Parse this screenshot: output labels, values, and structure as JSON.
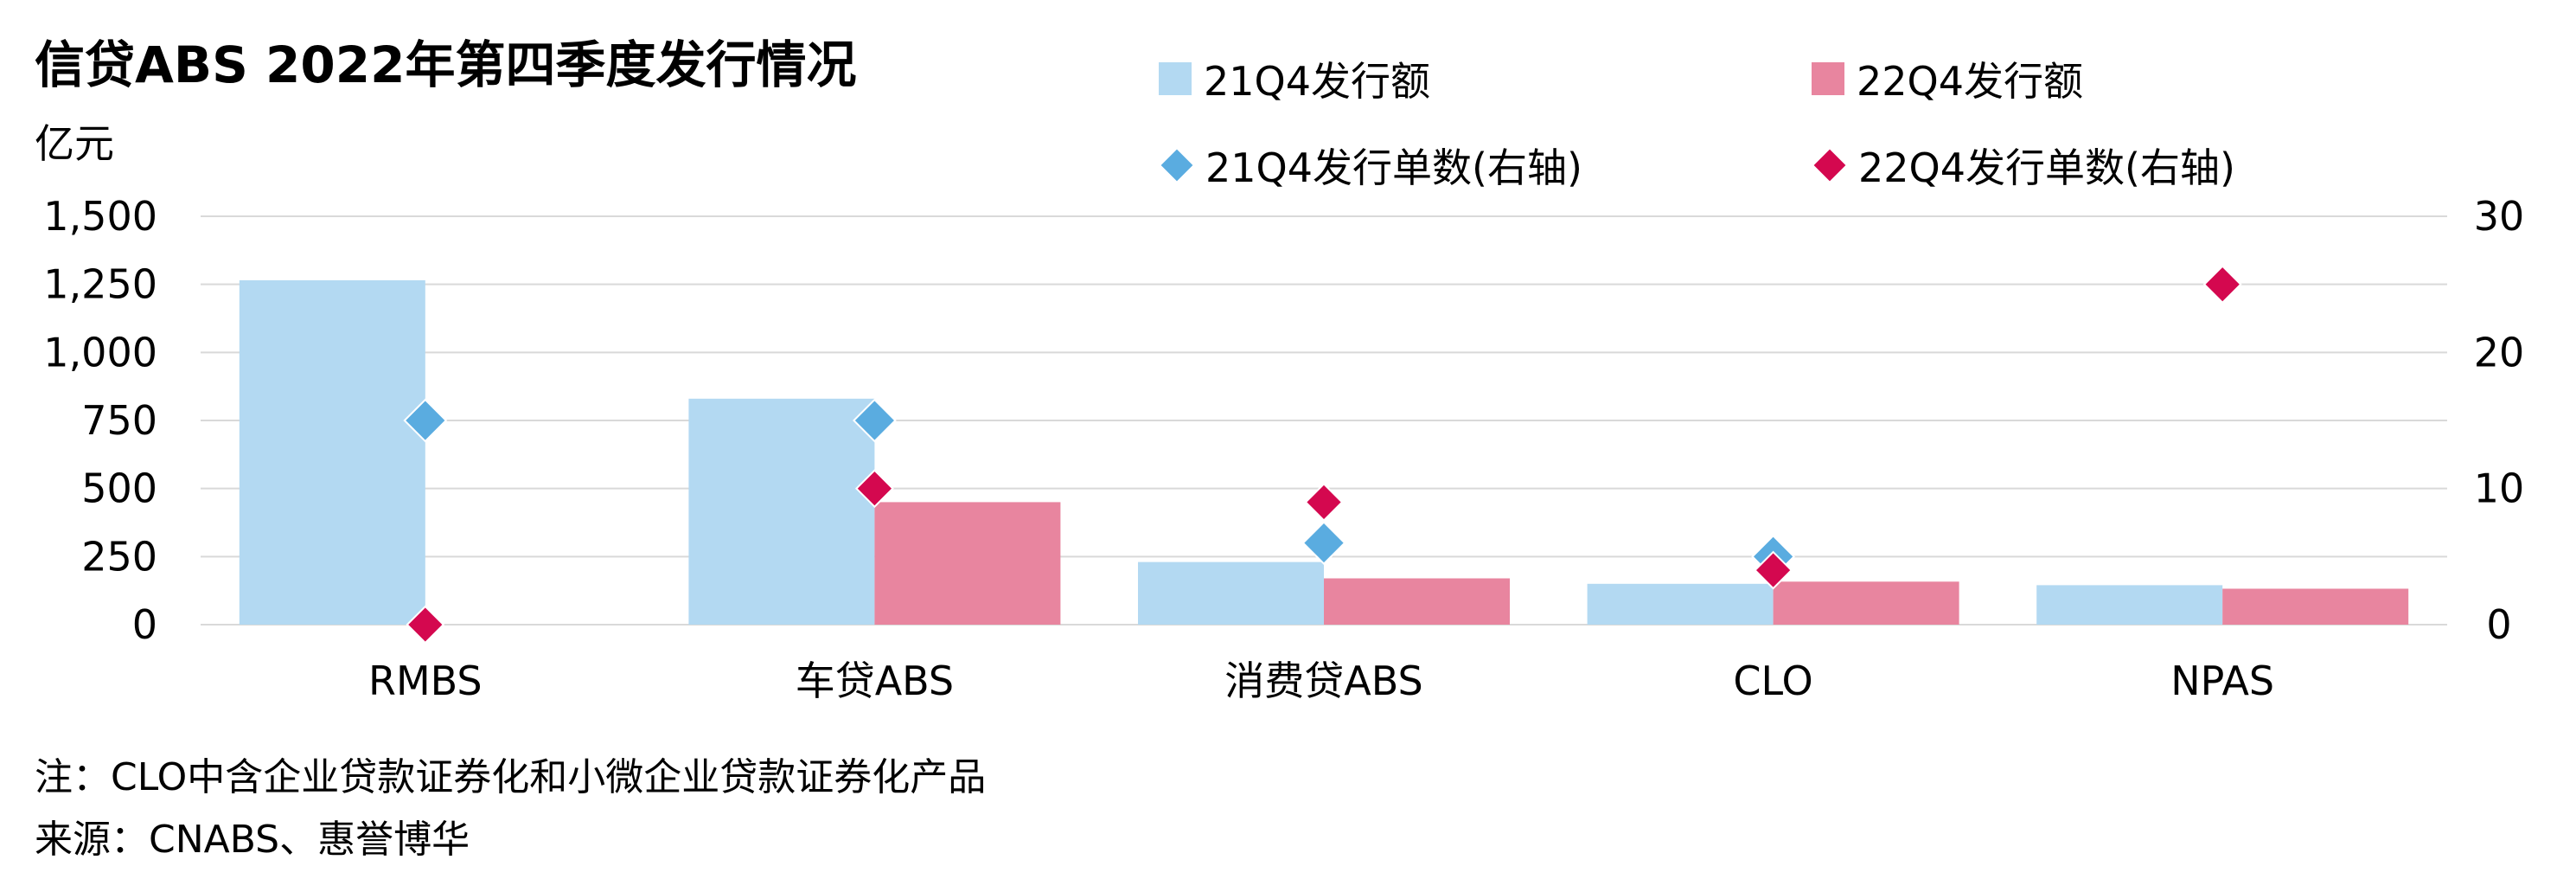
{
  "chart_data": {
    "type": "bar",
    "title": "信贷ABS 2022年第四季度发行情况",
    "ylabel": "亿元",
    "categories": [
      "RMBS",
      "车贷ABS",
      "消费贷ABS",
      "CLO",
      "NPAS"
    ],
    "ylim": [
      0,
      1500
    ],
    "yticks": [
      "0",
      "250",
      "500",
      "750",
      "1,000",
      "1,250",
      "1,500"
    ],
    "y2lim": [
      0,
      30
    ],
    "y2ticks": [
      "0",
      "10",
      "20",
      "30"
    ],
    "grid": true,
    "legend_position": "top",
    "series": [
      {
        "name": "21Q4发行额",
        "kind": "bar",
        "axis": "left",
        "color": "#b3d9f2",
        "values": [
          1265,
          830,
          230,
          150,
          145
        ]
      },
      {
        "name": "22Q4发行额",
        "kind": "bar",
        "axis": "left",
        "color": "#e8859f",
        "values": [
          0,
          450,
          170,
          158,
          132
        ]
      },
      {
        "name": "21Q4发行单数(右轴)",
        "kind": "marker",
        "axis": "right",
        "color": "#5aace0",
        "values": [
          15,
          15,
          6,
          5,
          null
        ]
      },
      {
        "name": "22Q4发行单数(右轴)",
        "kind": "marker",
        "axis": "right",
        "color": "#d4084f",
        "values": [
          0,
          10,
          9,
          4,
          25
        ]
      }
    ]
  },
  "notes": [
    "注：CLO中含企业贷款证券化和小微企业贷款证券化产品",
    "来源：CNABS、惠誉博华"
  ]
}
